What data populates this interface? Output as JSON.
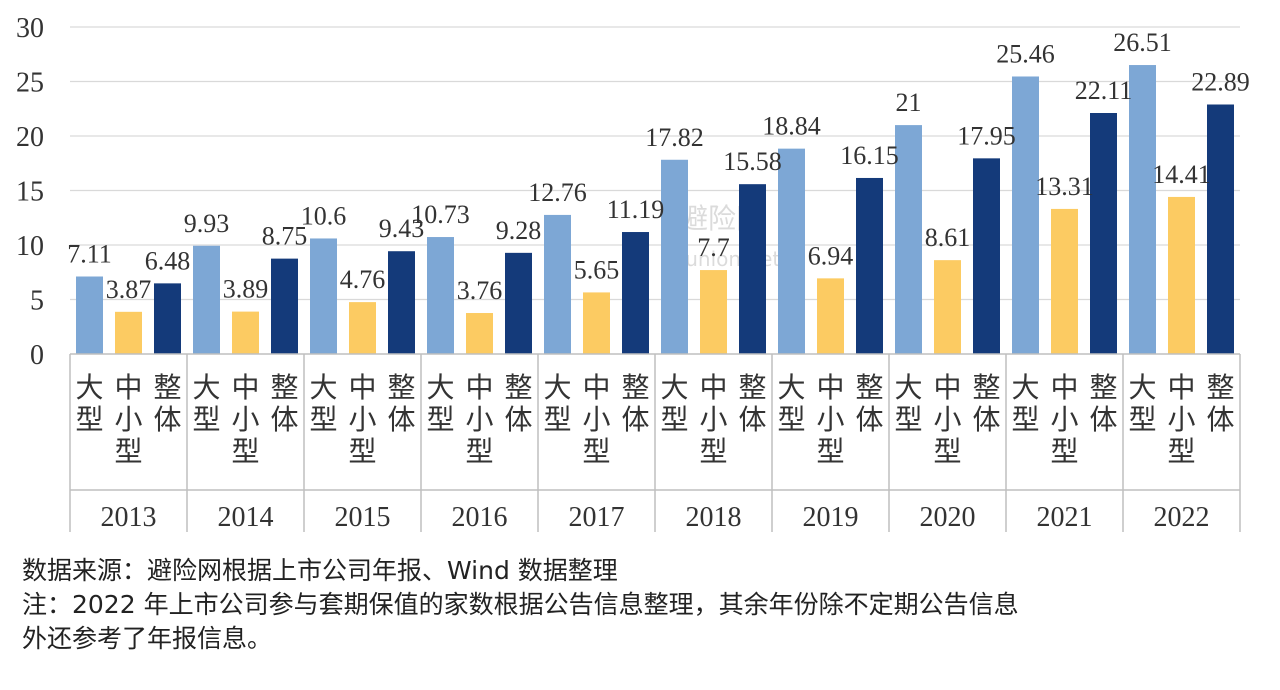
{
  "chart_data": {
    "type": "bar",
    "title": "",
    "xlabel": "",
    "ylabel": "",
    "ylim": [
      0,
      30
    ],
    "yticks": [
      0,
      5,
      10,
      15,
      20,
      25,
      30
    ],
    "grid": true,
    "years": [
      "2013",
      "2014",
      "2015",
      "2016",
      "2017",
      "2018",
      "2019",
      "2020",
      "2021",
      "2022"
    ],
    "sub_categories": [
      "大型",
      "中小型",
      "整体"
    ],
    "series": [
      {
        "name": "大型",
        "color": "#7da7d5",
        "values": [
          7.11,
          9.93,
          10.6,
          10.73,
          12.76,
          17.82,
          18.84,
          21,
          25.46,
          26.51
        ],
        "labels": [
          "7.11",
          "9.93",
          "10.6",
          "10.73",
          "12.76",
          "17.82",
          "18.84",
          "21",
          "25.46",
          "26.51"
        ]
      },
      {
        "name": "中小型",
        "color": "#fccb62",
        "values": [
          3.87,
          3.89,
          4.76,
          3.76,
          5.65,
          7.7,
          6.94,
          8.61,
          13.31,
          14.41
        ],
        "labels": [
          "3.87",
          "3.89",
          "4.76",
          "3.76",
          "5.65",
          "7.7",
          "6.94",
          "8.61",
          "13.31",
          "14.41"
        ]
      },
      {
        "name": "整体",
        "color": "#143a7a",
        "values": [
          6.48,
          8.75,
          9.43,
          9.28,
          11.19,
          15.58,
          16.15,
          17.95,
          22.11,
          22.89
        ],
        "labels": [
          "6.48",
          "8.75",
          "9.43",
          "9.28",
          "11.19",
          "15.58",
          "16.15",
          "17.95",
          "22.11",
          "22.89"
        ]
      }
    ]
  },
  "watermark": {
    "text": "避险网",
    "sub": "-union.net"
  },
  "notes": {
    "source": "数据来源：避险网根据上市公司年报、Wind 数据整理",
    "note_line1": "注：2022 年上市公司参与套期保值的家数根据公告信息整理，其余年份除不定期公告信息",
    "note_line2": "外还参考了年报信息。"
  }
}
